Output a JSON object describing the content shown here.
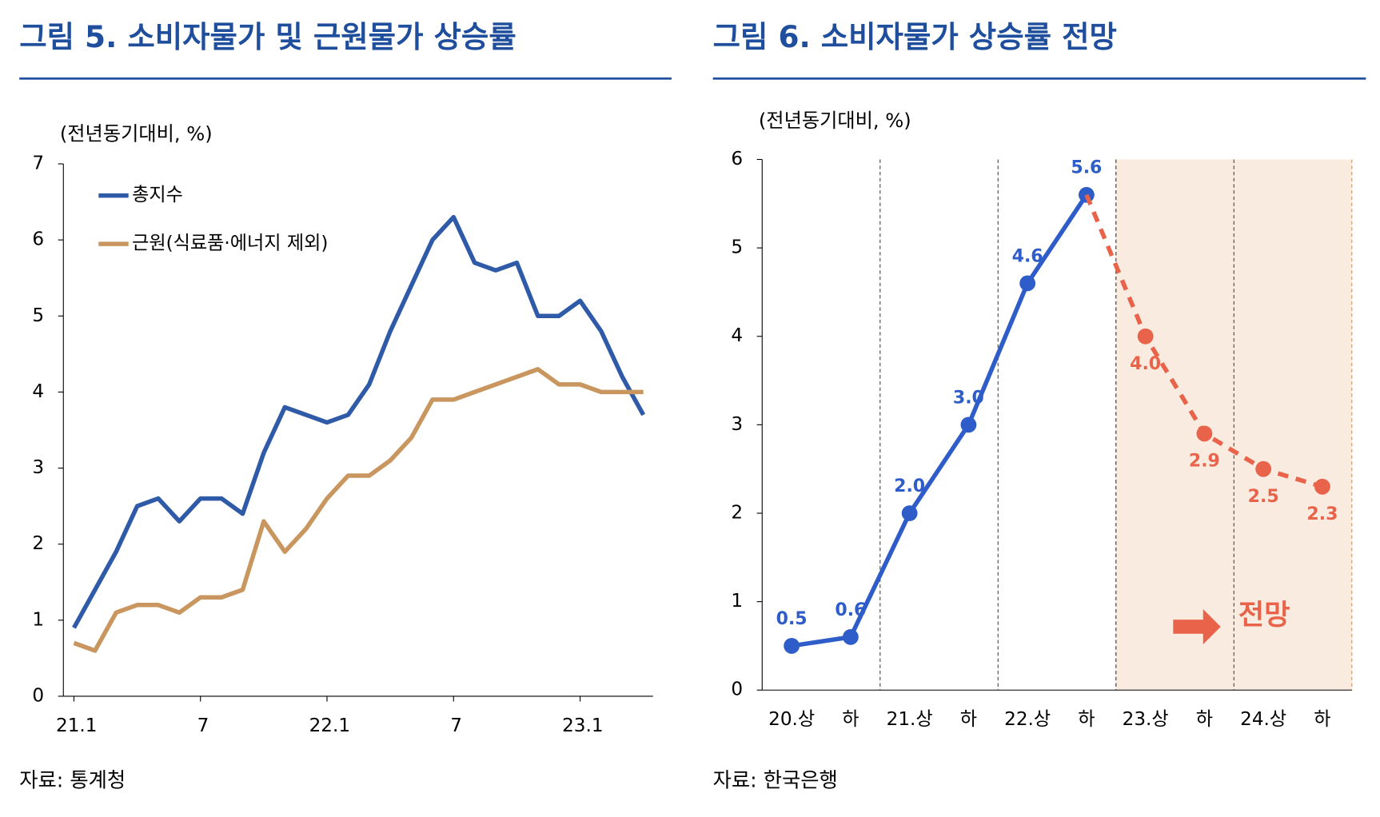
{
  "chart_data": [
    {
      "type": "line",
      "title": "그림 5. 소비자물가 및 근원물가 상승률",
      "unit": "(전년동기대비, %)",
      "source": "자료: 통계청",
      "categories": [
        "21.1",
        null,
        null,
        null,
        null,
        null,
        "7",
        null,
        null,
        null,
        null,
        null,
        "22.1",
        null,
        null,
        null,
        null,
        null,
        "7",
        null,
        null,
        null,
        null,
        null,
        "23.1",
        null,
        null,
        null
      ],
      "series": [
        {
          "name": "총지수",
          "color": "#2e5aa8",
          "values": [
            0.9,
            1.4,
            1.9,
            2.5,
            2.6,
            2.3,
            2.6,
            2.6,
            2.4,
            3.2,
            3.8,
            3.7,
            3.6,
            3.7,
            4.1,
            4.8,
            5.4,
            6.0,
            6.3,
            5.7,
            5.6,
            5.7,
            5.0,
            5.0,
            5.2,
            4.8,
            4.2,
            3.7
          ]
        },
        {
          "name": "근원(식료품·에너지 제외)",
          "color": "#c8965e",
          "values": [
            0.7,
            0.6,
            1.1,
            1.2,
            1.2,
            1.1,
            1.3,
            1.3,
            1.4,
            2.3,
            1.9,
            2.2,
            2.6,
            2.9,
            2.9,
            3.1,
            3.4,
            3.9,
            3.9,
            4.0,
            4.1,
            4.2,
            4.3,
            4.1,
            4.1,
            4.0,
            4.0,
            4.0
          ]
        }
      ],
      "ylim": [
        0,
        7
      ],
      "yticks": [
        0,
        1,
        2,
        3,
        4,
        5,
        6,
        7
      ]
    },
    {
      "type": "line",
      "title": "그림 6. 소비자물가 상승률 전망",
      "unit": "(전년동기대비, %)",
      "source": "자료: 한국은행",
      "annotation": "전망",
      "categories": [
        "20.상",
        "하",
        "21.상",
        "하",
        "22.상",
        "하",
        "23.상",
        "하",
        "24.상",
        "하"
      ],
      "series": [
        {
          "color": "#2e5cc8",
          "values": [
            0.5,
            0.6,
            2.0,
            3.0,
            4.6,
            5.6,
            null,
            null,
            null,
            null
          ],
          "value_labels": [
            "0.5",
            "0.6",
            "2.0",
            "3.0",
            "4.6",
            "5.6",
            null,
            null,
            null,
            null
          ]
        },
        {
          "color": "#e9634a",
          "dashed": true,
          "values": [
            null,
            null,
            null,
            null,
            null,
            5.6,
            4.0,
            2.9,
            2.5,
            2.3
          ],
          "value_labels": [
            null,
            null,
            null,
            null,
            null,
            null,
            "4.0",
            "2.9",
            "2.5",
            "2.3"
          ]
        }
      ],
      "ylim": [
        0,
        6
      ],
      "yticks": [
        0,
        1,
        2,
        3,
        4,
        5,
        6
      ]
    }
  ]
}
